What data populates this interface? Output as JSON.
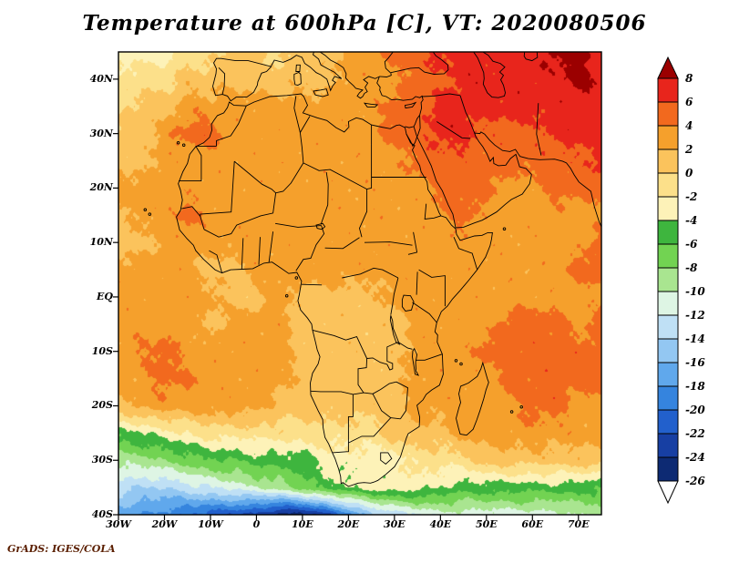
{
  "title": "Temperature at 600hPa [C], VT: 2020080506",
  "attribution": "GrADS: IGES/COLA",
  "axes": {
    "y_ticks": [
      "40N",
      "30N",
      "20N",
      "10N",
      "EQ",
      "10S",
      "20S",
      "30S",
      "40S"
    ],
    "y_tick_lats": [
      40,
      30,
      20,
      10,
      0,
      -10,
      -20,
      -30,
      -40
    ],
    "x_ticks": [
      "30W",
      "20W",
      "10W",
      "0",
      "10E",
      "20E",
      "30E",
      "40E",
      "50E",
      "60E",
      "70E"
    ],
    "x_tick_lons": [
      -30,
      -20,
      -10,
      0,
      10,
      20,
      30,
      40,
      50,
      60,
      70
    ]
  },
  "colorbar": {
    "labels": [
      "8",
      "6",
      "4",
      "2",
      "0",
      "-2",
      "-4",
      "-6",
      "-8",
      "-10",
      "-12",
      "-14",
      "-16",
      "-18",
      "-20",
      "-22",
      "-24",
      "-26"
    ]
  },
  "chart_data": {
    "type": "heatmap",
    "title": "Temperature at 600hPa [C]",
    "valid_time": "2020080506",
    "variable": "Temperature",
    "level": "600hPa",
    "units": "C",
    "lon_range": [
      -30,
      75
    ],
    "lat_range": [
      -40,
      45
    ],
    "levels": [
      -26,
      -24,
      -22,
      -20,
      -18,
      -16,
      -14,
      -12,
      -10,
      -8,
      -6,
      -4,
      -2,
      0,
      2,
      4,
      6,
      8
    ],
    "palette": [
      "#ffffff",
      "#0d2a73",
      "#173fa3",
      "#2260cc",
      "#3584de",
      "#60a8ec",
      "#93c7f2",
      "#bfe0f5",
      "#def5e4",
      "#a9e590",
      "#72d352",
      "#3eb53e",
      "#fdf2b8",
      "#fce08a",
      "#fbc35c",
      "#f5a02c",
      "#f2691e",
      "#e8251c",
      "#9b0000"
    ],
    "grid": {
      "lons": [
        -30,
        -25,
        -20,
        -15,
        -10,
        -5,
        0,
        5,
        10,
        15,
        20,
        25,
        30,
        35,
        40,
        45,
        50,
        55,
        60,
        65,
        70,
        75
      ],
      "lats": [
        45,
        40,
        35,
        30,
        25,
        20,
        15,
        10,
        5,
        0,
        -5,
        -10,
        -15,
        -20,
        -25,
        -30,
        -35,
        -40
      ],
      "values": [
        [
          -3,
          -3,
          -3,
          -1,
          -1,
          1,
          1,
          -1,
          1,
          1,
          3,
          3,
          5,
          5,
          7,
          7,
          7,
          7,
          7,
          9,
          9,
          7
        ],
        [
          -1,
          -1,
          -1,
          1,
          1,
          1,
          1,
          1,
          1,
          1,
          3,
          3,
          3,
          5,
          5,
          7,
          7,
          7,
          7,
          7,
          9,
          7
        ],
        [
          -1,
          1,
          1,
          3,
          3,
          3,
          3,
          3,
          3,
          3,
          3,
          3,
          5,
          5,
          7,
          7,
          7,
          7,
          7,
          7,
          7,
          7
        ],
        [
          1,
          1,
          3,
          5,
          5,
          3,
          3,
          3,
          3,
          3,
          3,
          3,
          5,
          5,
          7,
          7,
          5,
          5,
          5,
          7,
          7,
          7
        ],
        [
          1,
          1,
          3,
          3,
          3,
          3,
          3,
          3,
          3,
          3,
          3,
          3,
          3,
          5,
          5,
          5,
          5,
          5,
          5,
          5,
          5,
          7
        ],
        [
          3,
          3,
          3,
          3,
          3,
          3,
          3,
          3,
          3,
          3,
          3,
          3,
          3,
          3,
          5,
          5,
          5,
          3,
          3,
          5,
          5,
          5
        ],
        [
          1,
          3,
          3,
          5,
          3,
          3,
          3,
          3,
          3,
          3,
          3,
          3,
          3,
          3,
          3,
          5,
          3,
          3,
          3,
          3,
          3,
          3
        ],
        [
          1,
          1,
          3,
          3,
          3,
          3,
          3,
          3,
          3,
          3,
          3,
          3,
          3,
          3,
          3,
          3,
          3,
          3,
          3,
          3,
          3,
          5
        ],
        [
          3,
          3,
          3,
          3,
          1,
          1,
          3,
          3,
          3,
          3,
          3,
          3,
          3,
          3,
          3,
          3,
          3,
          3,
          3,
          3,
          5,
          5
        ],
        [
          3,
          3,
          3,
          3,
          3,
          1,
          1,
          3,
          1,
          1,
          1,
          1,
          3,
          3,
          3,
          3,
          3,
          3,
          3,
          3,
          3,
          3
        ],
        [
          3,
          3,
          3,
          3,
          1,
          3,
          3,
          3,
          1,
          1,
          1,
          1,
          1,
          3,
          3,
          3,
          3,
          5,
          5,
          5,
          3,
          5
        ],
        [
          3,
          4,
          5,
          3,
          3,
          3,
          3,
          3,
          1,
          1,
          1,
          1,
          1,
          3,
          3,
          3,
          5,
          5,
          5,
          5,
          5,
          5
        ],
        [
          3,
          3,
          5,
          4,
          3,
          3,
          3,
          3,
          1,
          1,
          1,
          1,
          1,
          3,
          3,
          3,
          3,
          5,
          5,
          5,
          5,
          5
        ],
        [
          1,
          3,
          3,
          3,
          3,
          3,
          3,
          1,
          1,
          1,
          1,
          1,
          1,
          3,
          3,
          3,
          3,
          3,
          5,
          5,
          3,
          3
        ],
        [
          -5,
          -4,
          -3,
          -2,
          -1,
          -1,
          -1,
          -1,
          -1,
          -1,
          -1,
          -1,
          1,
          1,
          1,
          3,
          3,
          3,
          3,
          3,
          3,
          3
        ],
        [
          -9,
          -9,
          -8,
          -7,
          -6,
          -6,
          -5,
          -5,
          -5,
          -3,
          -3,
          -3,
          -3,
          -1,
          -1,
          -1,
          1,
          1,
          1,
          1,
          1,
          1
        ],
        [
          -13,
          -14,
          -14,
          -13,
          -12,
          -11,
          -10,
          -9,
          -7,
          -5,
          -4,
          -3,
          -3,
          -3,
          -4,
          -5,
          -5,
          -5,
          -5,
          -5,
          -5,
          -6
        ],
        [
          -17,
          -18,
          -19,
          -20,
          -21,
          -22,
          -23,
          -25,
          -25,
          -23,
          -19,
          -15,
          -13,
          -12,
          -11,
          -11,
          -11,
          -11,
          -11,
          -11,
          -10,
          -9
        ]
      ]
    }
  }
}
